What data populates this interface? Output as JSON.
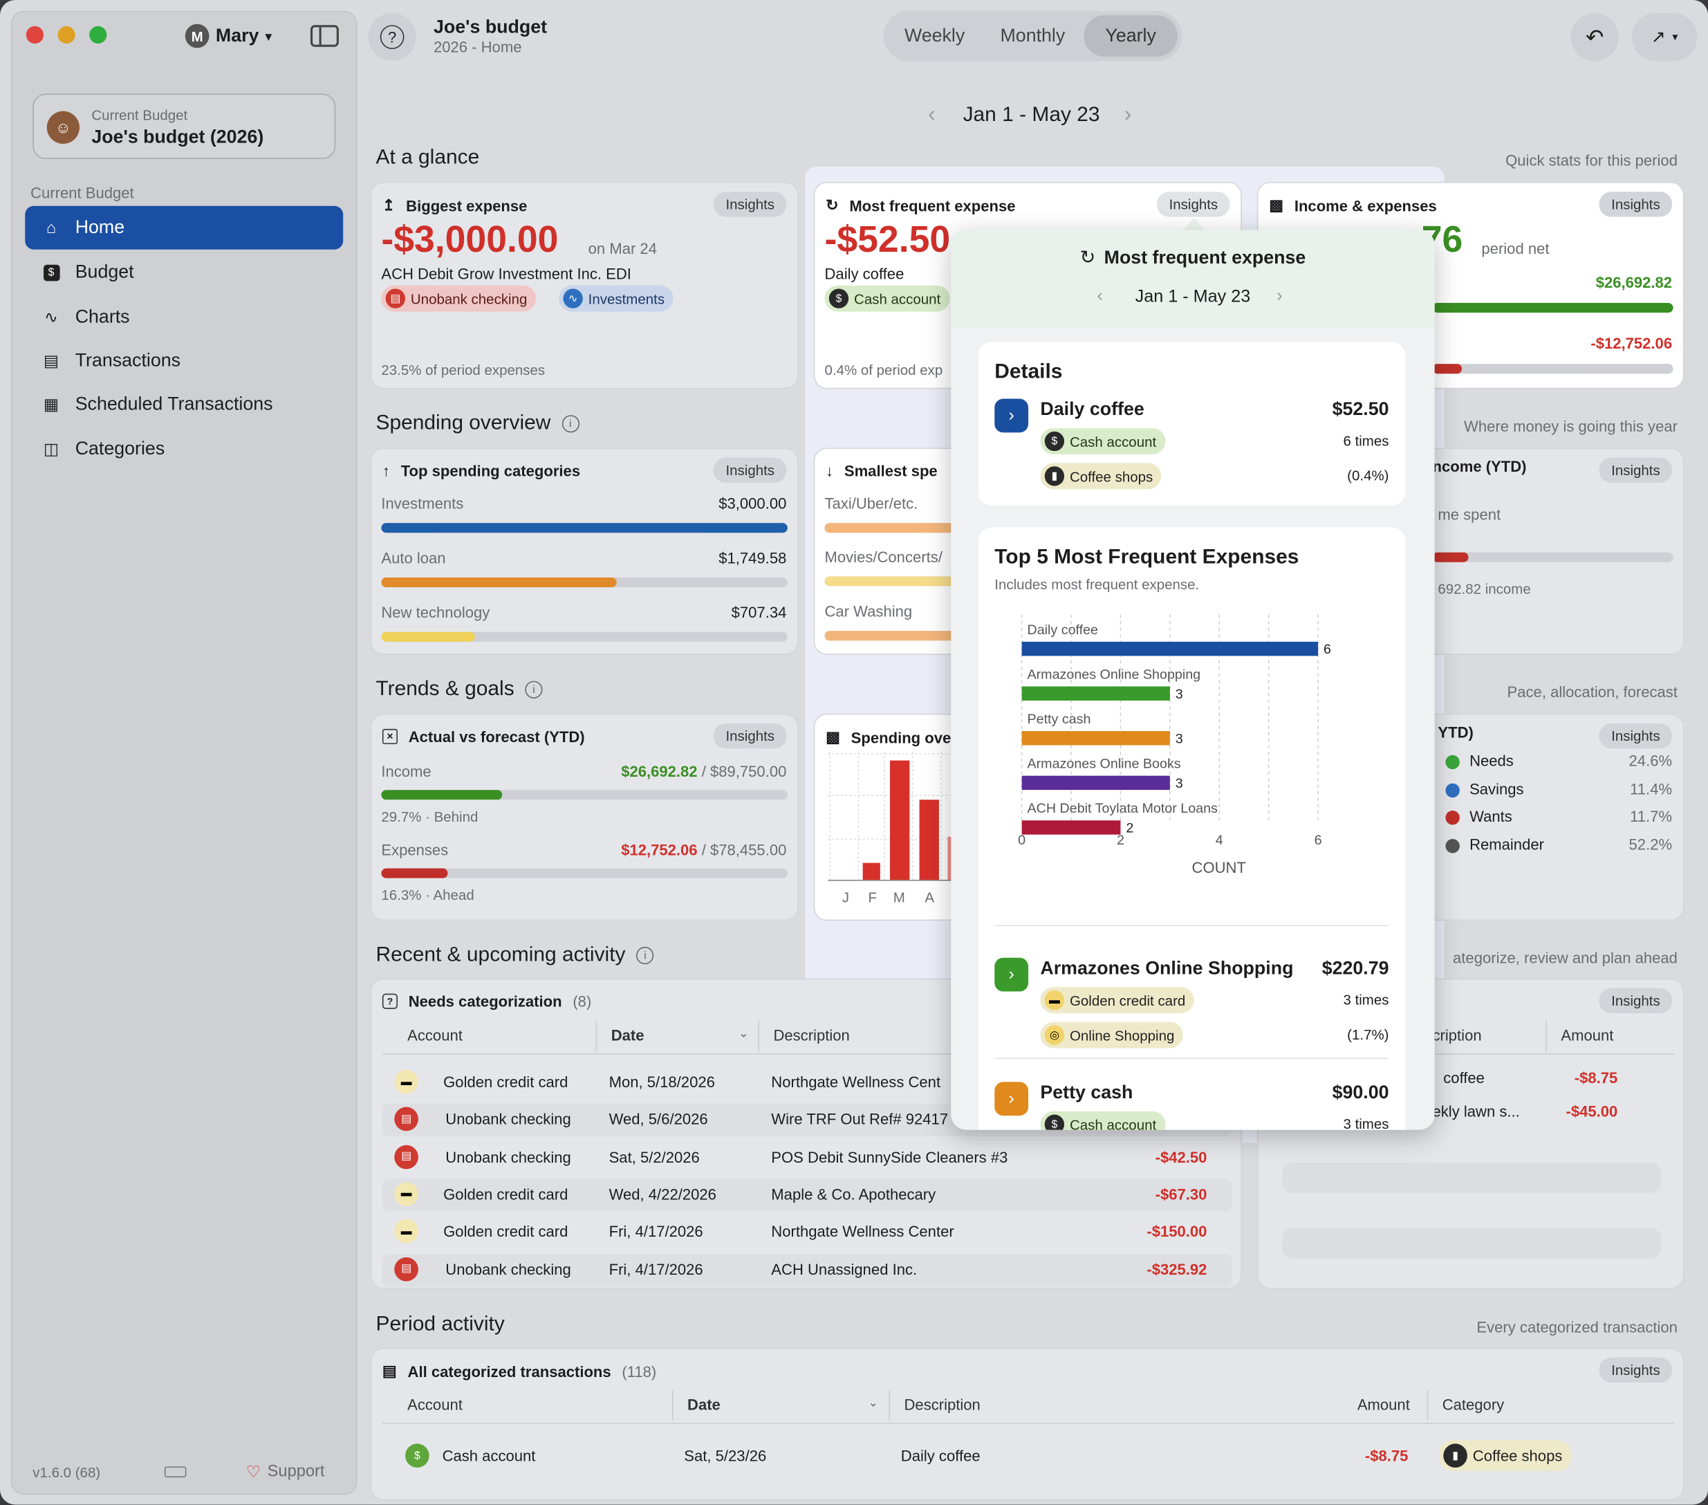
{
  "sidebar": {
    "user": "Mary",
    "user_initial": "M",
    "current_budget_label": "Current Budget",
    "current_budget_name": "Joe's budget (2026)",
    "section_label": "Current Budget",
    "nav": [
      "Home",
      "Budget",
      "Charts",
      "Transactions",
      "Scheduled Transactions",
      "Categories"
    ],
    "version": "v1.6.0 (68)",
    "support": "Support"
  },
  "header": {
    "title": "Joe's budget",
    "subtitle": "2026 - Home",
    "periods": [
      "Weekly",
      "Monthly",
      "Yearly"
    ],
    "selected_period": "Yearly",
    "range": "Jan 1 - May 23"
  },
  "glance": {
    "title": "At a glance",
    "subtitle": "Quick stats for this period",
    "biggest": {
      "title": "Biggest expense",
      "insights": "Insights",
      "amount": "-$3,000.00",
      "date": "on Mar 24",
      "desc": "ACH Debit Grow Investment Inc. EDI",
      "account1": "Unobank checking",
      "account2": "Investments",
      "foot": "23.5% of period expenses"
    },
    "frequent": {
      "title": "Most frequent expense",
      "insights": "Insights",
      "amount": "-$52.50",
      "desc": "Daily coffee",
      "account": "Cash account",
      "foot": "0.4% of period exp"
    },
    "income": {
      "title": "Income & expenses",
      "insights": "Insights",
      "amount": "$13,940.76",
      "amount_visible": "76",
      "label": "period net",
      "income_val": "$26,692.82",
      "expense_val": "-$12,752.06",
      "income_fraction": 1.0,
      "expense_fraction": 0.12
    }
  },
  "spending": {
    "title": "Spending overview",
    "subtitle": "Where money is going this year",
    "top": {
      "title": "Top spending categories",
      "insights": "Insights",
      "items": [
        {
          "name": "Investments",
          "value": "$3,000.00",
          "fraction": 1.0,
          "color": "#1f5ea8"
        },
        {
          "name": "Auto loan",
          "value": "$1,749.58",
          "fraction": 0.58,
          "color": "#e08a2a"
        },
        {
          "name": "New technology",
          "value": "$707.34",
          "fraction": 0.23,
          "color": "#f0d25a"
        }
      ]
    },
    "smallest": {
      "title": "Smallest spe",
      "items": [
        "Taxi/Uber/etc.",
        "Movies/Concerts/",
        "Car Washing"
      ]
    },
    "income_ytd": {
      "title": "ncome (YTD)",
      "insights": "Insights",
      "line1": "me spent",
      "line2": "692.82 income"
    }
  },
  "trends": {
    "title": "Trends & goals",
    "subtitle": "Pace, allocation, forecast",
    "forecast": {
      "title": "Actual vs forecast (YTD)",
      "insights": "Insights",
      "income_label": "Income",
      "income_val": "$26,692.82",
      "income_target": " / $89,750.00",
      "income_fraction": 0.297,
      "income_note": "29.7% · Behind",
      "expense_label": "Expenses",
      "expense_val": "$12,752.06",
      "expense_target": " / $78,455.00",
      "expense_fraction": 0.163,
      "expense_note": "16.3% · Ahead"
    },
    "spending_chart": {
      "title": "Spending ove",
      "months": [
        "J",
        "F",
        "M",
        "A"
      ]
    },
    "allocation": {
      "title": "YTD)",
      "insights": "Insights",
      "items": [
        {
          "name": "Needs",
          "pct": "24.6%",
          "color": "#3aa53a"
        },
        {
          "name": "Savings",
          "pct": "11.4%",
          "color": "#2f6fc0"
        },
        {
          "name": "Wants",
          "pct": "11.7%",
          "color": "#c0302a"
        },
        {
          "name": "Remainder",
          "pct": "52.2%",
          "color": "#555"
        }
      ]
    }
  },
  "recent": {
    "title": "Recent & upcoming activity",
    "subtitle": "ategorize, review and plan ahead",
    "needs": {
      "title": "Needs categorization",
      "count": "(8)",
      "cols": [
        "Account",
        "Date",
        "Description"
      ],
      "rows": [
        {
          "account": "Golden credit card",
          "type": "gold",
          "date": "Mon, 5/18/2026",
          "desc": "Northgate Wellness Cent",
          "amount": ""
        },
        {
          "account": "Unobank checking",
          "type": "red",
          "date": "Wed, 5/6/2026",
          "desc": "Wire TRF Out Ref# 92417",
          "amount": ""
        },
        {
          "account": "Unobank checking",
          "type": "red",
          "date": "Sat, 5/2/2026",
          "desc": "POS Debit SunnySide Cleaners #3",
          "amount": "-$42.50"
        },
        {
          "account": "Golden credit card",
          "type": "gold",
          "date": "Wed, 4/22/2026",
          "desc": "Maple & Co. Apothecary",
          "amount": "-$67.30"
        },
        {
          "account": "Golden credit card",
          "type": "gold",
          "date": "Fri, 4/17/2026",
          "desc": "Northgate Wellness Center",
          "amount": "-$150.00"
        },
        {
          "account": "Unobank checking",
          "type": "red",
          "date": "Fri, 4/17/2026",
          "desc": "ACH Unassigned Inc.",
          "amount": "-$325.92"
        }
      ]
    },
    "upcoming": {
      "insights": "Insights",
      "cols": [
        "cription",
        "Amount"
      ],
      "rows": [
        {
          "desc": "coffee",
          "amount": "-$8.75"
        },
        {
          "desc": "ekly lawn s...",
          "amount": "-$45.00"
        }
      ]
    }
  },
  "period": {
    "title": "Period activity",
    "subtitle": "Every categorized transaction",
    "table_title": "All categorized transactions",
    "count": "(118)",
    "insights": "Insights",
    "cols": [
      "Account",
      "Date",
      "Description",
      "Amount",
      "Category"
    ],
    "rows": [
      {
        "account": "Cash account",
        "date": "Sat, 5/23/26",
        "desc": "Daily coffee",
        "amount": "-$8.75",
        "category": "Coffee shops"
      }
    ]
  },
  "popover": {
    "title": "Most frequent expense",
    "range": "Jan 1 - May 23",
    "details": {
      "heading": "Details",
      "name": "Daily coffee",
      "amount": "$52.50",
      "account": "Cash account",
      "times": "6 times",
      "category": "Coffee shops",
      "pct": "(0.4%)"
    },
    "top5": {
      "heading": "Top 5 Most Frequent Expenses",
      "subtitle": "Includes most frequent expense."
    },
    "list": [
      {
        "name": "Armazones Online Shopping",
        "amount": "$220.79",
        "account": "Golden credit card",
        "times": "3 times",
        "category": "Online Shopping",
        "pct": "(1.7%)",
        "color": "#3a9a2a"
      },
      {
        "name": "Petty cash",
        "amount": "$90.00",
        "account": "Cash account",
        "times": "3 times",
        "color": "#e08a1e"
      }
    ]
  },
  "chart_data": {
    "type": "bar",
    "orientation": "horizontal",
    "categories": [
      "Daily coffee",
      "Armazones Online Shopping",
      "Petty cash",
      "Armazones Online Books",
      "ACH Debit Toylata Motor Loans"
    ],
    "values": [
      6,
      3,
      3,
      3,
      2
    ],
    "colors": [
      "#1a4fa0",
      "#3a9a2a",
      "#e08a1e",
      "#5a2d9a",
      "#b01a3a"
    ],
    "xlabel": "COUNT",
    "xticks": [
      0,
      2,
      4,
      6
    ],
    "xlim": [
      0,
      6
    ]
  }
}
